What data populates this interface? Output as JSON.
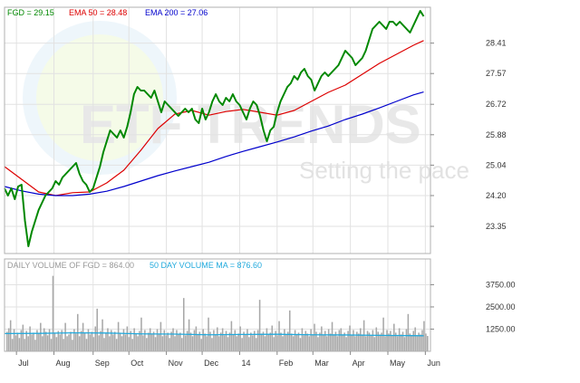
{
  "legend": {
    "price": {
      "label": "FGD = 29.15",
      "color": "#008800"
    },
    "ema50": {
      "label": "EMA 50 = 28.48",
      "color": "#dd0000"
    },
    "ema200": {
      "label": "EMA 200 = 27.06",
      "color": "#0000cc"
    }
  },
  "volume_legend": {
    "volume": {
      "label": "DAILY VOLUME OF FGD = 864.00",
      "color": "#999999"
    },
    "ma": {
      "label": "50 DAY VOLUME MA = 876.60",
      "color": "#22aadd"
    }
  },
  "watermark": {
    "brand": "ETF TRENDS",
    "tagline": "Setting the pace"
  },
  "chart_data": {
    "type": "line",
    "grid": true,
    "price_axis": {
      "ylim": [
        22.6,
        29.4
      ],
      "ticks": [
        "28.41",
        "27.57",
        "26.72",
        "25.88",
        "25.04",
        "24.20",
        "23.35"
      ],
      "tick_values": [
        28.41,
        27.57,
        26.72,
        25.88,
        25.04,
        24.2,
        23.35
      ]
    },
    "volume_axis": {
      "ylim": [
        0,
        5200
      ],
      "ticks": [
        "3750.00",
        "2500.00",
        "1250.00"
      ],
      "tick_values": [
        3750,
        2500,
        1250
      ]
    },
    "x_axis": {
      "labels": [
        "Jul",
        "Aug",
        "Sep",
        "Oct",
        "Nov",
        "Dec",
        "14",
        "Feb",
        "Mar",
        "Apr",
        "May",
        "Jun"
      ],
      "positions": [
        7,
        29,
        52,
        73,
        95,
        116,
        138,
        160,
        181,
        203,
        225,
        247
      ]
    },
    "series": [
      {
        "name": "FGD",
        "color": "#008800",
        "x": [
          0,
          2,
          4,
          6,
          8,
          10,
          12,
          14,
          16,
          18,
          20,
          22,
          24,
          26,
          28,
          30,
          32,
          34,
          36,
          38,
          40,
          42,
          44,
          46,
          48,
          50,
          52,
          54,
          56,
          58,
          60,
          62,
          64,
          66,
          68,
          70,
          72,
          74,
          76,
          78,
          80,
          82,
          84,
          86,
          88,
          90,
          92,
          94,
          96,
          98,
          100,
          102,
          104,
          106,
          108,
          110,
          112,
          114,
          116,
          118,
          120,
          122,
          124,
          126,
          128,
          130,
          132,
          134,
          136,
          138,
          140,
          142,
          144,
          146,
          148,
          150,
          152,
          154,
          156,
          158,
          160,
          162,
          164,
          166,
          168,
          170,
          172,
          174,
          176,
          178,
          180,
          182,
          184,
          186,
          188,
          190,
          192,
          194,
          196,
          198,
          200,
          202,
          204,
          206,
          208,
          210,
          212,
          214,
          216,
          218,
          220,
          222,
          224,
          226,
          228,
          230,
          232,
          234,
          236,
          238,
          240,
          242,
          244,
          246
        ],
        "values": [
          24.4,
          24.2,
          24.4,
          24.1,
          24.45,
          24.5,
          23.5,
          22.8,
          23.2,
          23.5,
          23.8,
          24.0,
          24.2,
          24.3,
          24.4,
          24.6,
          24.5,
          24.7,
          24.8,
          24.9,
          25.0,
          25.1,
          24.8,
          24.6,
          24.5,
          24.3,
          24.4,
          24.7,
          25.0,
          25.4,
          25.7,
          26.0,
          25.9,
          25.8,
          26.0,
          25.8,
          26.1,
          26.5,
          27.0,
          27.2,
          27.1,
          27.1,
          27.0,
          26.9,
          27.1,
          26.8,
          26.5,
          26.8,
          26.7,
          26.6,
          26.5,
          26.4,
          26.5,
          26.6,
          26.5,
          26.6,
          26.3,
          26.2,
          26.6,
          26.3,
          26.5,
          26.8,
          27.0,
          26.8,
          26.7,
          26.9,
          26.8,
          27.0,
          26.8,
          26.7,
          26.5,
          26.3,
          26.6,
          26.8,
          26.7,
          26.4,
          26.0,
          25.7,
          26.0,
          26.1,
          26.5,
          26.8,
          27.0,
          27.2,
          27.3,
          27.5,
          27.4,
          27.6,
          27.7,
          27.5,
          27.4,
          27.1,
          27.3,
          27.5,
          27.6,
          27.5,
          27.6,
          27.7,
          27.8,
          28.0,
          28.2,
          28.1,
          28.0,
          27.8,
          27.9,
          28.0,
          28.2,
          28.5,
          28.8,
          28.9,
          29.0,
          28.9,
          28.8,
          29.0,
          29.0,
          28.9,
          29.0,
          28.9,
          28.8,
          28.7,
          28.9,
          29.1,
          29.3,
          29.15
        ]
      },
      {
        "name": "EMA 50",
        "color": "#dd0000",
        "x": [
          0,
          10,
          20,
          30,
          40,
          50,
          60,
          70,
          80,
          90,
          100,
          110,
          120,
          130,
          140,
          150,
          160,
          170,
          180,
          190,
          200,
          210,
          220,
          230,
          240,
          246
        ],
        "values": [
          25.0,
          24.65,
          24.3,
          24.2,
          24.28,
          24.3,
          24.55,
          24.9,
          25.45,
          26.05,
          26.45,
          26.55,
          26.42,
          26.52,
          26.58,
          26.5,
          26.42,
          26.55,
          26.8,
          27.05,
          27.25,
          27.55,
          27.85,
          28.1,
          28.35,
          28.48
        ]
      },
      {
        "name": "EMA 200",
        "color": "#0000cc",
        "x": [
          0,
          10,
          20,
          30,
          40,
          50,
          60,
          70,
          80,
          90,
          100,
          110,
          120,
          130,
          140,
          150,
          160,
          170,
          180,
          190,
          200,
          210,
          220,
          230,
          240,
          246
        ],
        "values": [
          24.45,
          24.33,
          24.24,
          24.2,
          24.2,
          24.24,
          24.32,
          24.45,
          24.6,
          24.75,
          24.88,
          25.0,
          25.12,
          25.28,
          25.42,
          25.55,
          25.68,
          25.82,
          25.98,
          26.12,
          26.3,
          26.45,
          26.62,
          26.8,
          26.98,
          27.06
        ]
      }
    ],
    "volume": {
      "name": "DAILY VOLUME OF FGD",
      "values": [
        1100,
        1300,
        1750,
        700,
        1250,
        900,
        1050,
        750,
        1200,
        1500,
        700,
        1150,
        850,
        1400,
        950,
        1050,
        650,
        1200,
        1000,
        1600,
        850,
        1300,
        1100,
        900,
        1250,
        700,
        4250,
        1050,
        800,
        1150,
        950,
        1200,
        700,
        1600,
        850,
        950,
        1100,
        650,
        1250,
        1000,
        2100,
        850,
        1150,
        1600,
        1050,
        700,
        1250,
        950,
        1100,
        800,
        1400,
        2400,
        900,
        1150,
        1800,
        750,
        1000,
        1300,
        850,
        1200,
        950,
        1100,
        700,
        1650,
        1050,
        850,
        1250,
        950,
        1400,
        800,
        1150,
        700,
        1300,
        1000,
        850,
        1150,
        1900,
        900,
        1200,
        750,
        1050,
        1300,
        950,
        1100,
        800,
        1250,
        950,
        1650,
        850,
        1200,
        900,
        1050,
        750,
        1100,
        1300,
        850,
        1200,
        950,
        1050,
        750,
        3000,
        900,
        1150,
        1800,
        1050,
        850,
        1200,
        1400,
        950,
        1100,
        700,
        1250,
        1000,
        850,
        1900,
        1100,
        750,
        1200,
        950,
        1350,
        850,
        1050,
        1300,
        900,
        1150,
        800,
        1050,
        1700,
        950,
        1200,
        850,
        1000,
        1400,
        750,
        1100,
        950,
        1250,
        800,
        1050,
        900,
        1150,
        750,
        1200,
        2900,
        1000,
        1100,
        850,
        1300,
        950,
        1050,
        1450,
        800,
        1150,
        900,
        1700,
        1050,
        850,
        1250,
        950,
        1100,
        2300,
        1000,
        850,
        1200,
        950,
        1050,
        750,
        1300,
        900,
        1150,
        1000,
        850,
        1250,
        950,
        1550,
        1100,
        800,
        1050,
        1400,
        900,
        1150,
        850,
        1250,
        1000,
        1650,
        950,
        1100,
        850,
        1200,
        1300,
        950,
        1050,
        800,
        1150,
        1450,
        900,
        1200,
        850,
        1100,
        1000,
        1300,
        950,
        1750,
        850,
        1150,
        1050,
        900,
        1200,
        800,
        1350,
        1100,
        950,
        1050,
        1900,
        850,
        1200,
        1000,
        1150,
        900,
        1550,
        1050,
        850,
        1300,
        950,
        1100,
        800,
        1250,
        2100,
        1000,
        900,
        1150,
        1350,
        850,
        1050,
        950,
        1200,
        1700,
        1000,
        864
      ]
    },
    "volume_ma": {
      "name": "50 DAY VOLUME MA",
      "x": [
        0,
        20,
        40,
        60,
        80,
        100,
        120,
        140,
        160,
        180,
        200,
        220,
        246
      ],
      "values": [
        1000,
        1010,
        1040,
        1030,
        980,
        970,
        930,
        950,
        960,
        930,
        920,
        900,
        876.6
      ]
    }
  }
}
